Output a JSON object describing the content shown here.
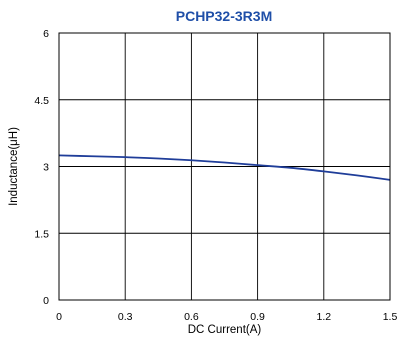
{
  "chart_data": {
    "type": "line",
    "title": "PCHP32-3R3M",
    "xlabel": "DC Current(A)",
    "ylabel": "Inductance(μH)",
    "xlim": [
      0,
      1.5
    ],
    "ylim": [
      0,
      6
    ],
    "xticks": [
      0,
      0.3,
      0.6,
      0.9,
      1.2,
      1.5
    ],
    "xtick_labels": [
      "0",
      "0.3",
      "0.6",
      "0.9",
      "1.2",
      "1.5"
    ],
    "yticks": [
      0,
      1.5,
      3,
      4.5,
      6
    ],
    "ytick_labels": [
      "0",
      "1.5",
      "3",
      "4.5",
      "6"
    ],
    "grid": true,
    "series": [
      {
        "color": "#1f3d99",
        "x": [
          0,
          0.15,
          0.3,
          0.45,
          0.6,
          0.75,
          0.9,
          1.05,
          1.2,
          1.35,
          1.5
        ],
        "y": [
          3.25,
          3.23,
          3.21,
          3.18,
          3.14,
          3.09,
          3.03,
          2.97,
          2.89,
          2.8,
          2.7
        ]
      }
    ],
    "title_color": "#1f4fa8"
  }
}
